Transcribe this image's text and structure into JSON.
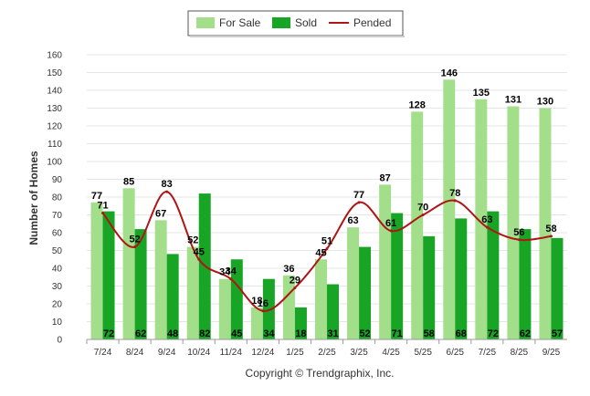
{
  "chart_data": {
    "type": "bar",
    "categories": [
      "7/24",
      "8/24",
      "9/24",
      "10/24",
      "11/24",
      "12/24",
      "1/25",
      "2/25",
      "3/25",
      "4/25",
      "5/25",
      "6/25",
      "7/25",
      "8/25",
      "9/25"
    ],
    "series": [
      {
        "name": "For Sale",
        "type": "bar",
        "color": "#a3df8a",
        "values": [
          77,
          85,
          67,
          52,
          34,
          18,
          36,
          45,
          63,
          87,
          128,
          146,
          135,
          131,
          130
        ]
      },
      {
        "name": "Sold",
        "type": "bar",
        "color": "#18a526",
        "values": [
          72,
          62,
          48,
          82,
          45,
          34,
          18,
          31,
          52,
          71,
          58,
          68,
          72,
          62,
          57
        ]
      },
      {
        "name": "Pended",
        "type": "line",
        "color": "#b01515",
        "values": [
          71,
          52,
          83,
          45,
          34,
          16,
          29,
          51,
          77,
          61,
          70,
          78,
          63,
          56,
          58
        ]
      }
    ],
    "ylabel": "Number of Homes",
    "xlabel": "",
    "ylim": [
      0,
      160
    ],
    "yticks": [
      0,
      10,
      20,
      30,
      40,
      50,
      60,
      70,
      80,
      90,
      100,
      110,
      120,
      130,
      140,
      150,
      160
    ],
    "grid": true,
    "legend_position": "top-center"
  },
  "footer": {
    "copyright": "Copyright © Trendgraphix, Inc."
  }
}
